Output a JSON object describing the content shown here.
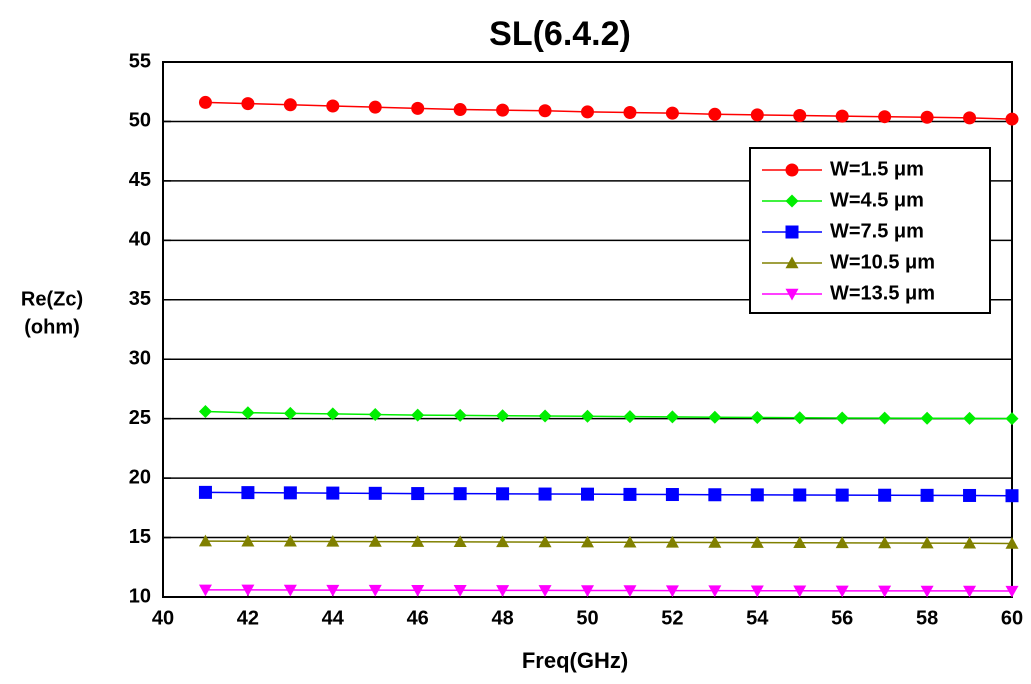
{
  "chart_data": {
    "type": "line",
    "title": "SL(6.4.2)",
    "x_label": "Freq(GHz)",
    "y_label": [
      "Re(Zc)",
      "(ohm)"
    ],
    "x": [
      41,
      42,
      43,
      44,
      45,
      46,
      47,
      48,
      49,
      50,
      51,
      52,
      53,
      54,
      55,
      56,
      57,
      58,
      59,
      60
    ],
    "series": [
      {
        "name": "W=1.5 μm",
        "color": "#ff0000",
        "marker": "circle",
        "values": [
          51.6,
          51.5,
          51.4,
          51.3,
          51.2,
          51.1,
          51.0,
          50.95,
          50.9,
          50.8,
          50.75,
          50.7,
          50.6,
          50.55,
          50.5,
          50.45,
          50.4,
          50.35,
          50.3,
          50.2
        ]
      },
      {
        "name": "W=4.5 μm",
        "color": "#00ee00",
        "marker": "diamond",
        "values": [
          25.6,
          25.5,
          25.45,
          25.4,
          25.35,
          25.3,
          25.28,
          25.25,
          25.22,
          25.2,
          25.17,
          25.15,
          25.12,
          25.1,
          25.08,
          25.06,
          25.05,
          25.04,
          25.02,
          25.0
        ]
      },
      {
        "name": "W=7.5 μm",
        "color": "#0000ff",
        "marker": "square",
        "values": [
          18.8,
          18.78,
          18.76,
          18.74,
          18.72,
          18.7,
          18.69,
          18.68,
          18.66,
          18.65,
          18.63,
          18.62,
          18.6,
          18.59,
          18.58,
          18.57,
          18.56,
          18.55,
          18.54,
          18.52
        ]
      },
      {
        "name": "W=10.5 μm",
        "color": "#808000",
        "marker": "triangle-up",
        "values": [
          14.7,
          14.69,
          14.68,
          14.67,
          14.66,
          14.65,
          14.64,
          14.63,
          14.62,
          14.61,
          14.6,
          14.59,
          14.58,
          14.57,
          14.56,
          14.55,
          14.54,
          14.53,
          14.52,
          14.5
        ]
      },
      {
        "name": "W=13.5 μm",
        "color": "#ff00ff",
        "marker": "triangle-down",
        "values": [
          10.6,
          10.6,
          10.59,
          10.58,
          10.58,
          10.57,
          10.57,
          10.56,
          10.56,
          10.55,
          10.55,
          10.54,
          10.54,
          10.53,
          10.53,
          10.52,
          10.52,
          10.51,
          10.51,
          10.5
        ]
      }
    ],
    "xlim": [
      40,
      60
    ],
    "ylim": [
      10,
      55
    ],
    "xticks": [
      40,
      42,
      44,
      46,
      48,
      50,
      52,
      54,
      56,
      58,
      60
    ],
    "yticks": [
      10,
      15,
      20,
      25,
      30,
      35,
      40,
      45,
      50,
      55
    ],
    "grid": true,
    "legend": "upper-right"
  }
}
